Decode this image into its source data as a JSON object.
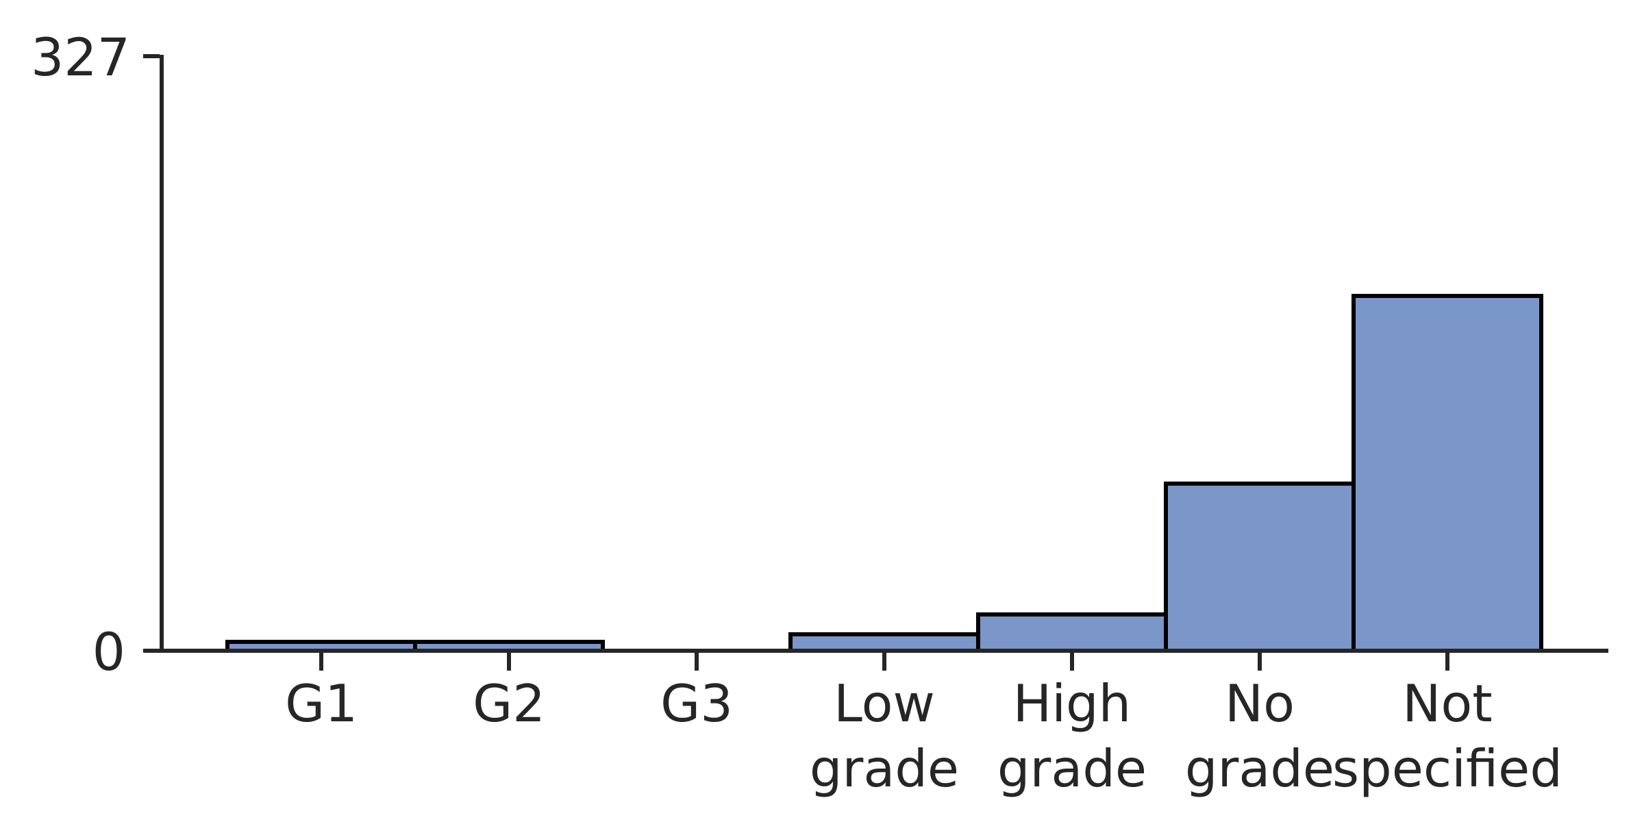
{
  "chart_data": {
    "type": "bar",
    "categories": [
      "G1",
      "G2",
      "G3",
      "Low grade",
      "High grade",
      "No grade",
      "Not specified"
    ],
    "values": [
      5,
      5,
      1,
      9,
      20,
      92,
      195
    ],
    "title": "",
    "xlabel": "",
    "ylabel": "",
    "ylim": [
      0,
      327
    ],
    "yticks_shown": [
      327,
      0
    ],
    "grid": false,
    "legend": "none",
    "bar_style": "flush-adjacent bars with black edges, tiny bars hidden beneath baseline axis"
  },
  "figure": {
    "background": "#ffffff",
    "y_axis": {
      "tick_labels": [
        "327",
        "0"
      ]
    },
    "x_axis": {
      "tick_label_lines": [
        [
          "G1"
        ],
        [
          "G2"
        ],
        [
          "G3"
        ],
        [
          "Low",
          "grade"
        ],
        [
          "High",
          "grade"
        ],
        [
          "No",
          "grade"
        ],
        [
          "Not",
          "specified"
        ]
      ]
    },
    "colors": {
      "bar_fill": "#7b96c8",
      "bar_edge": "#000000",
      "axis": "#262626",
      "text": "#262626"
    }
  }
}
